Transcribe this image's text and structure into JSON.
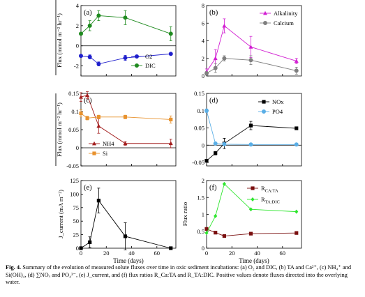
{
  "caption": {
    "lead": "Fig. 4.",
    "text": "Summary of the evolution of measured solute fluxes over time in oxic sediment incubations: (a) O₂ and DIC, (b) TA and Ca²⁺, (c) NH₄⁺ and Si(OH)₄, (d) ∑NOₓ and PO₄³⁻, (e) J_current, and (f) flux ratios R_Ca:TA and R_TA:DIC. Positive values denote fluxes directed into the overlying water."
  },
  "axis_titles": {
    "flux_upper": "Flux (mmol m⁻² hr⁻¹)",
    "flux_lower": "Flux (mmol m⁻² hr⁻¹)",
    "current": "J_current (mA m⁻²)",
    "flux_ratio": "Flux ratio",
    "time_left": "Time (days)",
    "time_right": "Time (days)"
  },
  "colors": {
    "O2": "#1f1fcc",
    "DIC": "#1e8a1e",
    "Alkalinity": "#d21ed2",
    "Calcium": "#7f7f7f",
    "NH4": "#a31d1d",
    "Si": "#e8922e",
    "NOx": "#000000",
    "PO4": "#5aaee6",
    "Current": "#000000",
    "RCaTA": "#7a0f0f",
    "RTADIC": "#2ee62e"
  },
  "chart_data": [
    {
      "panel": "a",
      "type": "line",
      "xlim": [
        0,
        75
      ],
      "ylim": [
        -3,
        4
      ],
      "yticks": [
        -2,
        0,
        2,
        4
      ],
      "xticks": [
        0,
        20,
        40,
        60
      ],
      "legend": "bottom-right",
      "series": [
        {
          "name": "O2",
          "x": [
            0,
            7,
            14,
            35,
            71
          ],
          "y": [
            -1.0,
            -1.1,
            -1.8,
            -1.2,
            -0.8
          ],
          "err": [
            0.1,
            0.2,
            0.2,
            0.25,
            0.1
          ],
          "marker": "circle"
        },
        {
          "name": "DIC",
          "x": [
            0,
            7,
            14,
            35,
            71
          ],
          "y": [
            1.2,
            2.0,
            3.0,
            2.8,
            1.2
          ],
          "err": [
            0.1,
            0.5,
            0.5,
            0.7,
            0.7
          ],
          "marker": "circle"
        }
      ]
    },
    {
      "panel": "b",
      "type": "line",
      "xlim": [
        0,
        75
      ],
      "ylim": [
        0,
        8
      ],
      "yticks": [
        0,
        2,
        4,
        6,
        8
      ],
      "xticks": [
        0,
        20,
        40,
        60
      ],
      "legend": "top-right",
      "series": [
        {
          "name": "Alkalinity",
          "x": [
            0,
            7,
            14,
            35,
            71
          ],
          "y": [
            0.5,
            2.0,
            5.7,
            3.3,
            1.7
          ],
          "err": [
            0.3,
            1.0,
            0.8,
            1.2,
            0.3
          ],
          "marker": "triangle"
        },
        {
          "name": "Calcium",
          "x": [
            0,
            7,
            14,
            35,
            71
          ],
          "y": [
            0.3,
            0.9,
            2.0,
            1.8,
            0.6
          ],
          "err": [
            0.2,
            0.5,
            0.3,
            0.5,
            0.4
          ],
          "marker": "circle"
        }
      ]
    },
    {
      "panel": "c",
      "type": "line",
      "xlim": [
        0,
        75
      ],
      "ylim": [
        -0.05,
        0.15
      ],
      "yticks": [
        -0.05,
        0,
        0.05,
        0.1,
        0.15
      ],
      "xticks": [
        0,
        20,
        40,
        60
      ],
      "legend": "bottom-left",
      "series": [
        {
          "name": "NH4",
          "x": [
            0,
            5,
            14,
            35,
            71
          ],
          "y": [
            0.14,
            0.145,
            0.06,
            0.012,
            0.012
          ],
          "err": [
            0.012,
            0.01,
            0.02,
            0.005,
            0.012
          ],
          "marker": "triangle"
        },
        {
          "name": "Si",
          "x": [
            0,
            5,
            14,
            35,
            71
          ],
          "y": [
            0.095,
            0.082,
            0.085,
            0.085,
            0.078
          ],
          "err": [
            0.01,
            0.005,
            0.005,
            0.005,
            0.01
          ],
          "marker": "square"
        }
      ]
    },
    {
      "panel": "d",
      "type": "line",
      "xlim": [
        0,
        75
      ],
      "ylim": [
        -0.06,
        0.15
      ],
      "yticks": [
        -0.05,
        0,
        0.05,
        0.1,
        0.15
      ],
      "xticks": [
        0,
        20,
        40,
        60
      ],
      "legend": "top-right",
      "series": [
        {
          "name": "NOx",
          "x": [
            0,
            7,
            14,
            35,
            71
          ],
          "y": [
            -0.045,
            -0.023,
            0.005,
            0.057,
            0.049
          ],
          "err": [
            0.003,
            0.005,
            0.015,
            0.012,
            0.004
          ],
          "marker": "square"
        },
        {
          "name": "PO4",
          "x": [
            0,
            7,
            14,
            35,
            71
          ],
          "y": [
            0.1,
            0.005,
            0.003,
            0.002,
            0.002
          ],
          "err": [
            0.005,
            0.003,
            0.002,
            0.002,
            0.002
          ],
          "marker": "circle"
        }
      ]
    },
    {
      "panel": "e",
      "type": "line",
      "xlim": [
        0,
        75
      ],
      "ylim": [
        0,
        125
      ],
      "yticks": [
        0,
        25,
        50,
        75,
        100,
        125
      ],
      "xticks": [
        0,
        20,
        40,
        60
      ],
      "xticklabels": [
        "0",
        "20",
        "40",
        "60"
      ],
      "series": [
        {
          "name": "J_current",
          "x": [
            0,
            7,
            14,
            35,
            71
          ],
          "y": [
            0,
            11,
            88,
            22,
            0
          ],
          "err": [
            0,
            10,
            23,
            25,
            0
          ],
          "marker": "square"
        }
      ]
    },
    {
      "panel": "f",
      "type": "line",
      "xlim": [
        0,
        75
      ],
      "ylim": [
        0,
        2
      ],
      "yticks": [
        0,
        0.5,
        1,
        1.5,
        2
      ],
      "xticks": [
        0,
        20,
        40,
        60
      ],
      "xticklabels": [
        "0",
        "20",
        "40",
        "60"
      ],
      "legend": "top-right",
      "series": [
        {
          "name": "R_Ca:TA",
          "x": [
            0,
            7,
            14,
            35,
            71
          ],
          "y": [
            0.57,
            0.46,
            0.36,
            0.43,
            0.45
          ],
          "marker": "square"
        },
        {
          "name": "R_TA:DIC",
          "x": [
            0,
            7,
            14,
            35,
            71
          ],
          "y": [
            0.45,
            0.95,
            1.9,
            1.15,
            1.08
          ],
          "marker": "diamond"
        }
      ]
    }
  ],
  "panel_labels": [
    "(a)",
    "(b)",
    "(c)",
    "(d)",
    "(e)",
    "(f)"
  ],
  "legend_labels": {
    "a": [
      "O2",
      "DIC"
    ],
    "b": [
      "Alkalinity",
      "Calcium"
    ],
    "c": [
      "NH4",
      "Si"
    ],
    "d": [
      "NOx",
      "PO4"
    ],
    "f": [
      "R_Ca:TA",
      "R_TA:DIC"
    ]
  }
}
